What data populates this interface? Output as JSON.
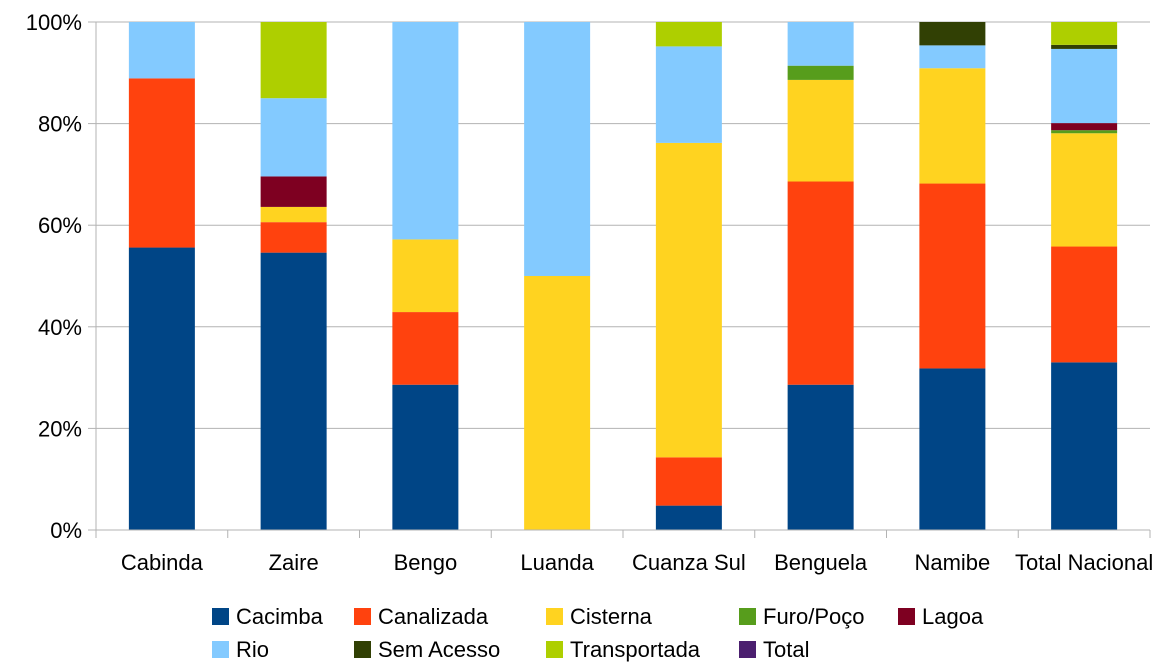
{
  "chart_data": {
    "type": "bar",
    "stacked": true,
    "percent": true,
    "categories": [
      "Cabinda",
      "Zaire",
      "Bengo",
      "Luanda",
      "Cuanza Sul",
      "Benguela",
      "Namibe",
      "Total Nacional"
    ],
    "ylim": [
      0,
      100
    ],
    "yticks": [
      "0%",
      "20%",
      "40%",
      "60%",
      "80%",
      "100%"
    ],
    "grid": "horizontal",
    "legend_position": "bottom",
    "series": [
      {
        "name": "Cacimba",
        "color": "#004586",
        "values": [
          55.6,
          54.6,
          28.6,
          0,
          4.8,
          28.6,
          31.8,
          33.0
        ]
      },
      {
        "name": "Canalizada",
        "color": "#ff420e",
        "values": [
          33.3,
          6.0,
          14.3,
          0,
          9.5,
          40.0,
          36.4,
          22.8
        ]
      },
      {
        "name": "Cisterna",
        "color": "#ffd320",
        "values": [
          0,
          3.0,
          14.3,
          50.0,
          61.9,
          20.0,
          22.7,
          22.3
        ]
      },
      {
        "name": "Furo/Poço",
        "color": "#579d1c",
        "values": [
          0,
          0,
          0,
          0,
          0,
          2.8,
          0,
          0.6
        ]
      },
      {
        "name": "Lagoa",
        "color": "#7e0021",
        "values": [
          0,
          6.0,
          0,
          0,
          0,
          0,
          0,
          1.4
        ]
      },
      {
        "name": "Rio",
        "color": "#83caff",
        "values": [
          11.1,
          15.4,
          42.8,
          50.0,
          19.0,
          8.6,
          4.5,
          14.6
        ]
      },
      {
        "name": "Sem Acesso",
        "color": "#314004",
        "values": [
          0,
          0,
          0,
          0,
          0,
          0,
          4.6,
          0.8
        ]
      },
      {
        "name": "Transportada",
        "color": "#aecf00",
        "values": [
          0,
          15.0,
          0,
          0,
          4.8,
          0,
          0,
          4.5
        ]
      },
      {
        "name": "Total",
        "color": "#4b1f6f",
        "values": [
          0,
          0,
          0,
          0,
          0,
          0,
          0,
          0
        ]
      }
    ]
  }
}
